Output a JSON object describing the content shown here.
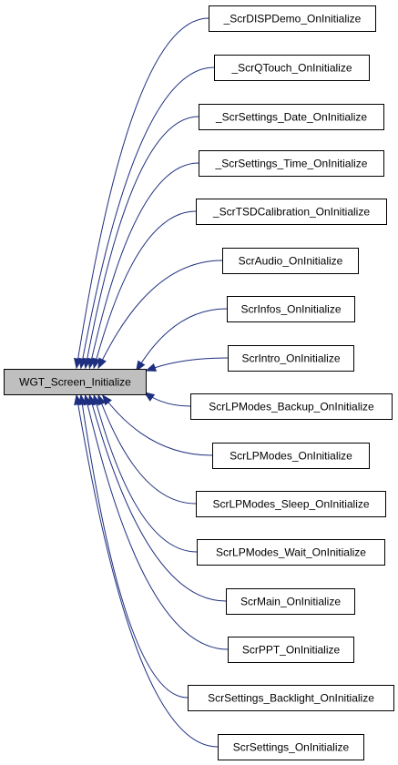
{
  "root": {
    "label": "WGT_Screen_Initialize"
  },
  "callers": [
    {
      "label": "_ScrDISPDemo_OnInitialize"
    },
    {
      "label": "_ScrQTouch_OnInitialize"
    },
    {
      "label": "_ScrSettings_Date_OnInitialize"
    },
    {
      "label": "_ScrSettings_Time_OnInitialize"
    },
    {
      "label": "_ScrTSDCalibration_OnInitialize"
    },
    {
      "label": "ScrAudio_OnInitialize"
    },
    {
      "label": "ScrInfos_OnInitialize"
    },
    {
      "label": "ScrIntro_OnInitialize"
    },
    {
      "label": "ScrLPModes_Backup_OnInitialize"
    },
    {
      "label": "ScrLPModes_OnInitialize"
    },
    {
      "label": "ScrLPModes_Sleep_OnInitialize"
    },
    {
      "label": "ScrLPModes_Wait_OnInitialize"
    },
    {
      "label": "ScrMain_OnInitialize"
    },
    {
      "label": "ScrPPT_OnInitialize"
    },
    {
      "label": "ScrSettings_Backlight_OnInitialize"
    },
    {
      "label": "ScrSettings_OnInitialize"
    }
  ],
  "colors": {
    "edge": "#1f2f7f",
    "root_fill": "#bfbfbf",
    "node_fill": "#ffffff",
    "border": "#000000"
  }
}
